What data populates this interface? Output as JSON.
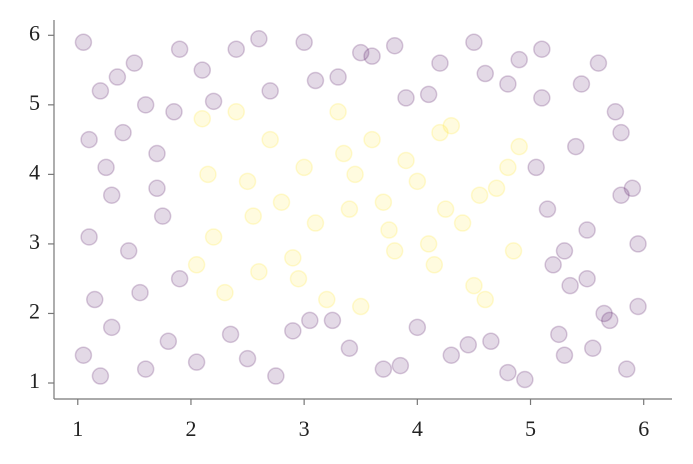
{
  "chart_data": {
    "type": "scatter",
    "xlim": [
      0.79,
      6.25
    ],
    "ylim": [
      0.77,
      6.22
    ],
    "xticks": [
      1,
      2,
      3,
      4,
      5,
      6
    ],
    "yticks": [
      1,
      2,
      3,
      4,
      5,
      6
    ],
    "series": [
      {
        "color": "#440154",
        "x": [
          1.05,
          1.2,
          1.4,
          1.7,
          1.9,
          1.1,
          1.3,
          1.6,
          1.85,
          1.15,
          1.5,
          1.75,
          1.25,
          1.05,
          1.45,
          1.8,
          1.6,
          1.3,
          1.1,
          1.9,
          1.55,
          1.2,
          1.7,
          1.35,
          2.1,
          2.4,
          2.7,
          3.0,
          3.3,
          3.6,
          3.9,
          4.2,
          4.5,
          4.8,
          2.2,
          2.6,
          3.1,
          3.5,
          3.8,
          4.1,
          4.6,
          4.9,
          2.05,
          2.35,
          2.75,
          3.05,
          3.4,
          3.7,
          4.0,
          4.3,
          4.65,
          4.95,
          2.5,
          2.9,
          3.25,
          3.85,
          4.45,
          4.8,
          5.1,
          5.3,
          5.5,
          5.8,
          5.95,
          5.2,
          5.45,
          5.7,
          5.9,
          5.05,
          5.35,
          5.6,
          5.85,
          5.15,
          5.5,
          5.75,
          5.25,
          5.95,
          5.4,
          5.65,
          5.1,
          5.8,
          5.3,
          5.55
        ],
        "y": [
          5.9,
          5.2,
          4.6,
          3.8,
          2.5,
          3.1,
          1.8,
          1.2,
          4.9,
          2.2,
          5.6,
          3.4,
          4.1,
          1.4,
          2.9,
          1.6,
          5.0,
          3.7,
          4.5,
          5.8,
          2.3,
          1.1,
          4.3,
          5.4,
          5.5,
          5.8,
          5.2,
          5.9,
          5.4,
          5.7,
          5.1,
          5.6,
          5.9,
          5.3,
          5.05,
          5.95,
          5.35,
          5.75,
          5.85,
          5.15,
          5.45,
          5.65,
          1.3,
          1.7,
          1.1,
          1.9,
          1.5,
          1.2,
          1.8,
          1.4,
          1.6,
          1.05,
          1.35,
          1.75,
          1.9,
          1.25,
          1.55,
          1.15,
          5.8,
          1.4,
          3.2,
          4.6,
          2.1,
          2.7,
          5.3,
          1.9,
          3.8,
          4.1,
          2.4,
          5.6,
          1.2,
          3.5,
          2.5,
          4.9,
          1.7,
          3.0,
          4.4,
          2.0,
          5.1,
          3.7,
          2.9,
          1.5
        ]
      },
      {
        "color": "#fde725",
        "x": [
          2.1,
          2.3,
          2.5,
          2.7,
          2.9,
          3.1,
          3.3,
          3.5,
          3.7,
          3.9,
          4.1,
          4.3,
          4.5,
          4.7,
          4.9,
          2.2,
          2.6,
          3.0,
          3.4,
          3.8,
          4.2,
          4.6,
          2.15,
          2.55,
          2.95,
          3.35,
          3.75,
          4.15,
          4.55,
          4.85,
          2.4,
          2.8,
          3.2,
          3.6,
          4.0,
          4.4,
          4.8,
          2.05,
          3.45,
          4.25
        ],
        "y": [
          4.8,
          2.3,
          3.9,
          4.5,
          2.8,
          3.3,
          4.9,
          2.1,
          3.6,
          4.2,
          3.0,
          4.7,
          2.4,
          3.8,
          4.4,
          3.1,
          2.6,
          4.1,
          3.5,
          2.9,
          4.6,
          2.2,
          4.0,
          3.4,
          2.5,
          4.3,
          3.2,
          2.7,
          3.7,
          2.9,
          4.9,
          3.6,
          2.2,
          4.5,
          3.9,
          3.3,
          4.1,
          2.7,
          4.0,
          3.5
        ]
      }
    ]
  }
}
